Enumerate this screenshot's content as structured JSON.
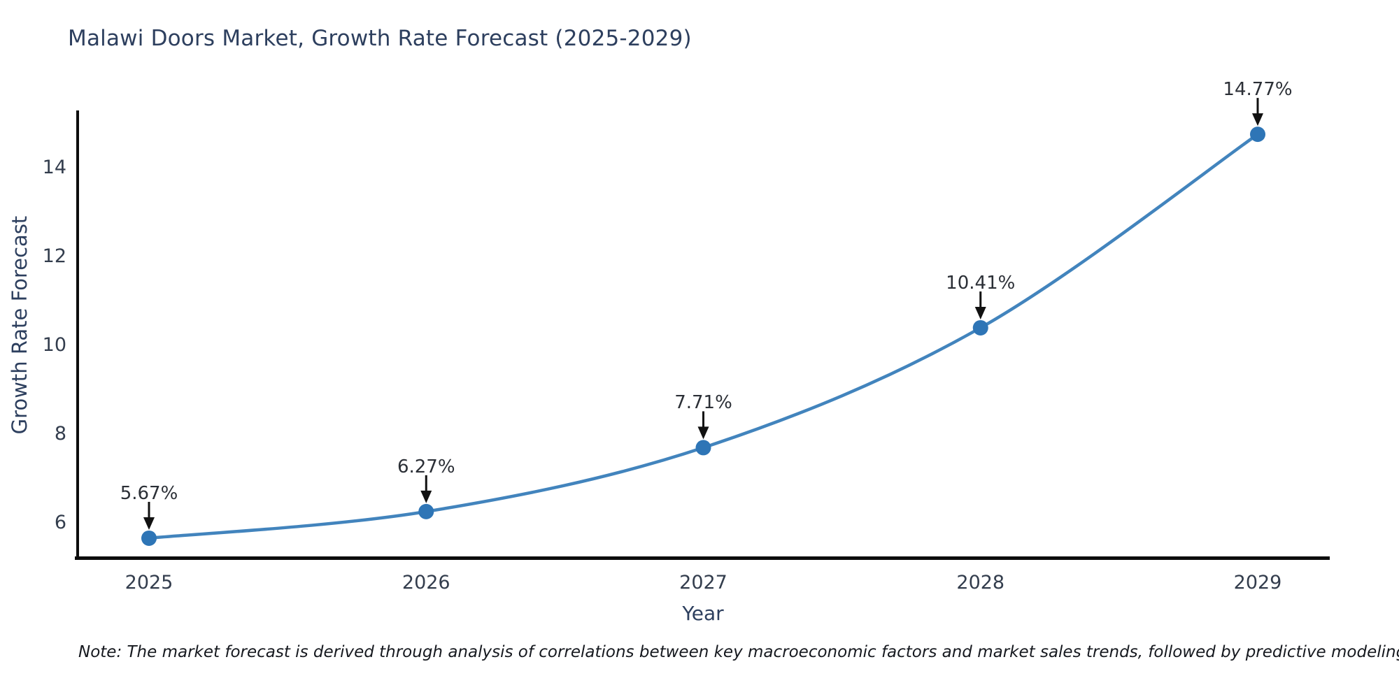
{
  "chart_data": {
    "type": "line",
    "title": "Malawi Doors Market, Growth Rate Forecast (2025-2029)",
    "xlabel": "Year",
    "ylabel": "Growth Rate Forecast",
    "categories": [
      "2025",
      "2026",
      "2027",
      "2028",
      "2029"
    ],
    "series": [
      {
        "name": "Growth Rate Forecast",
        "values": [
          5.67,
          6.27,
          7.71,
          10.41,
          14.77
        ],
        "point_labels": [
          "5.67%",
          "6.27%",
          "7.71%",
          "10.41%",
          "14.77%"
        ]
      }
    ],
    "yticks": [
      6,
      8,
      10,
      12,
      14
    ],
    "ylim": [
      5.2,
      15.3
    ],
    "grid": false,
    "legend_position": "none",
    "line_color": "#4284bd",
    "marker_color": "#2e75b6",
    "arrow_color": "#111111",
    "axis_color": "#0d0d0d"
  },
  "note": "Note: The market forecast is derived through analysis of correlations between key macroeconomic factors and market sales trends, followed by predictive modeling to project future sales"
}
